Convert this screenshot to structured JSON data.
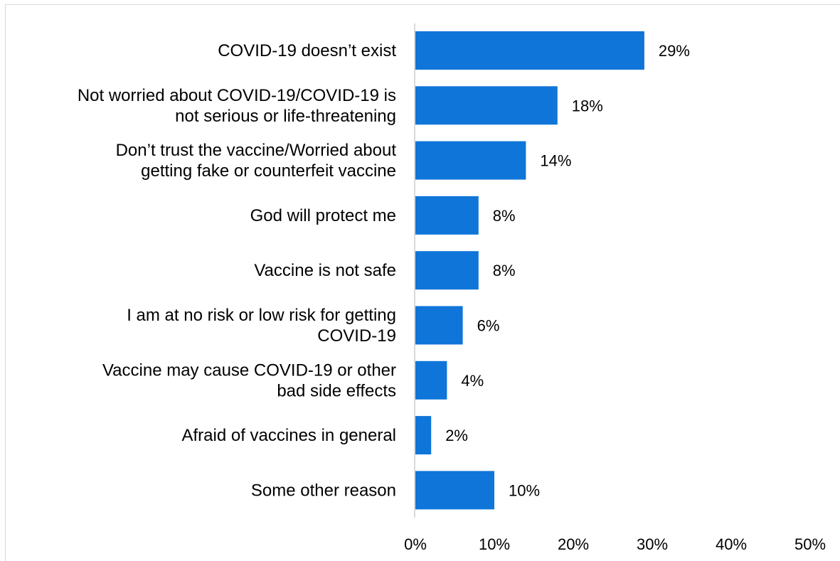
{
  "chart_data": {
    "type": "bar",
    "orientation": "horizontal",
    "title": "",
    "xlabel": "",
    "ylabel": "",
    "categories": [
      [
        "COVID-19 doesn’t exist"
      ],
      [
        "Not worried about COVID-19/COVID-19 is",
        "not serious or life-threatening"
      ],
      [
        "Don’t trust the vaccine/Worried about",
        "getting fake or counterfeit vaccine"
      ],
      [
        "God will protect me"
      ],
      [
        "Vaccine is not safe"
      ],
      [
        "I am at no risk or low risk for getting",
        "COVID-19"
      ],
      [
        "Vaccine may cause COVID-19 or other",
        "bad side effects"
      ],
      [
        "Afraid of vaccines in general"
      ],
      [
        "Some other reason"
      ]
    ],
    "values": [
      29,
      18,
      14,
      8,
      8,
      6,
      4,
      2,
      10
    ],
    "value_labels": [
      "29%",
      "18%",
      "14%",
      "8%",
      "8%",
      "6%",
      "4%",
      "2%",
      "10%"
    ],
    "xlim": [
      0,
      50
    ],
    "x_ticks": [
      0,
      10,
      20,
      30,
      40,
      50
    ],
    "x_tick_labels": [
      "0%",
      "10%",
      "20%",
      "30%",
      "40%",
      "50%"
    ],
    "bar_color": "#0f75d9",
    "axis_color": "#d9d9d9",
    "grid": false,
    "legend": "none"
  }
}
